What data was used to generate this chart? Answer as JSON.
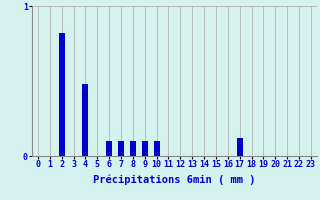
{
  "xlabel": "Précipitations 6min ( mm )",
  "background_color": "#d5f2ee",
  "bar_color": "#0000cc",
  "grid_color": "#aaaaaa",
  "values": [
    0,
    0,
    0.82,
    0,
    0.48,
    0,
    0.1,
    0.1,
    0.1,
    0.1,
    0.1,
    0,
    0,
    0,
    0,
    0,
    0,
    0.12,
    0,
    0,
    0,
    0,
    0,
    0
  ],
  "hours": [
    0,
    1,
    2,
    3,
    4,
    5,
    6,
    7,
    8,
    9,
    10,
    11,
    12,
    13,
    14,
    15,
    16,
    17,
    18,
    19,
    20,
    21,
    22,
    23
  ],
  "ylim": [
    0,
    1.0
  ],
  "yticks": [
    0,
    1
  ],
  "xlim": [
    -0.5,
    23.5
  ],
  "text_color": "#0000cc",
  "axis_color": "#888888",
  "tick_fontsize": 6,
  "label_fontsize": 7.5
}
